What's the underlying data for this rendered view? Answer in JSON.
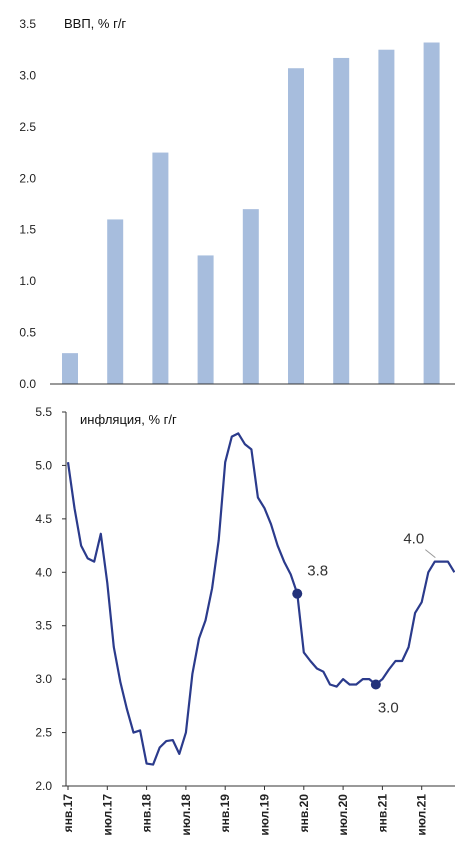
{
  "chart_data": [
    {
      "type": "bar",
      "title": "ВВП, % г/г",
      "ylim": [
        0,
        3.5
      ],
      "yticks": [
        "0.0",
        "0.5",
        "1.0",
        "1.5",
        "2.0",
        "2.5",
        "3.0",
        "3.5"
      ],
      "values": [
        0.3,
        1.6,
        2.25,
        1.25,
        1.7,
        3.07,
        3.17,
        3.25,
        3.32
      ],
      "grid": false,
      "colors": {
        "bar": "#a7bddd"
      }
    },
    {
      "type": "line",
      "title": "инфляция, % г/г",
      "ylim": [
        2.0,
        5.5
      ],
      "yticks": [
        "2.0",
        "2.5",
        "3.0",
        "3.5",
        "4.0",
        "4.5",
        "5.0",
        "5.5"
      ],
      "x_labels": [
        "янв.17",
        "июл.17",
        "янв.18",
        "июл.18",
        "янв.19",
        "июл.19",
        "янв.20",
        "июл.20",
        "янв.21",
        "июл.21"
      ],
      "values": [
        5.03,
        4.6,
        4.25,
        4.13,
        4.1,
        4.36,
        3.9,
        3.3,
        2.97,
        2.72,
        2.5,
        2.52,
        2.21,
        2.2,
        2.36,
        2.42,
        2.43,
        2.3,
        2.5,
        3.05,
        3.38,
        3.55,
        3.85,
        4.3,
        5.03,
        5.27,
        5.3,
        5.2,
        5.15,
        4.7,
        4.6,
        4.45,
        4.25,
        4.1,
        3.98,
        3.8,
        3.25,
        3.17,
        3.1,
        3.07,
        2.95,
        2.93,
        3.0,
        2.95,
        2.95,
        3.0,
        3.0,
        2.95,
        3.0,
        3.09,
        3.17,
        3.17,
        3.3,
        3.62,
        3.72,
        4.0,
        4.1,
        4.1,
        4.1,
        4.0
      ],
      "markers": [
        {
          "index": 35,
          "label": "3.8"
        },
        {
          "index": 47,
          "label": "3.0"
        }
      ],
      "end_label": "4.0",
      "grid": false,
      "colors": {
        "line": "#2b3b8c",
        "marker": "#23327a"
      }
    }
  ]
}
